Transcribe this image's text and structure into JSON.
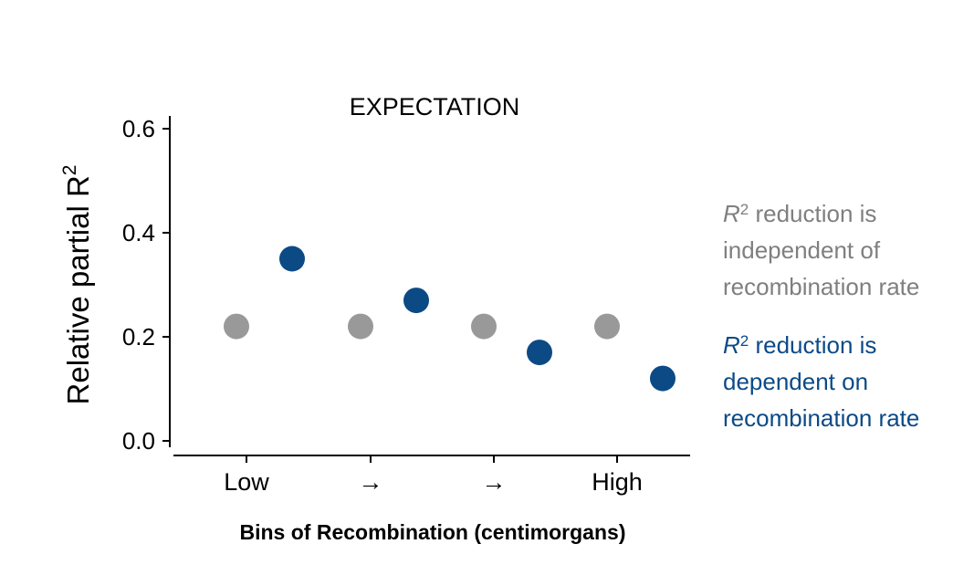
{
  "chart_data": {
    "type": "scatter",
    "title": "EXPECTATION",
    "ylabel": "Relative partial R",
    "ylabel_superscript": "2",
    "xlabel": "Bins of Recombination (centimorgans)",
    "ylim": [
      0.0,
      0.6
    ],
    "yticks": [
      "0.0",
      "0.2",
      "0.4",
      "0.6"
    ],
    "categories": [
      "Low",
      "→",
      "→",
      "High"
    ],
    "series": [
      {
        "color": "#999999",
        "values": [
          0.22,
          0.22,
          0.22,
          0.22
        ]
      },
      {
        "color": "#0c4a86",
        "values": [
          0.35,
          0.27,
          0.17,
          0.12
        ]
      }
    ],
    "grid": false
  },
  "legend": {
    "gray": {
      "color": "#7f7f7f",
      "r_symbol": "R",
      "sup": "2",
      "line1_rest": " reduction is",
      "line2": "independent of",
      "line3": "recombination rate"
    },
    "blue": {
      "color": "#0c4a86",
      "r_symbol": "R",
      "sup": "2",
      "line1_rest": " reduction is",
      "line2": "dependent on",
      "line3": "recombination rate"
    }
  }
}
